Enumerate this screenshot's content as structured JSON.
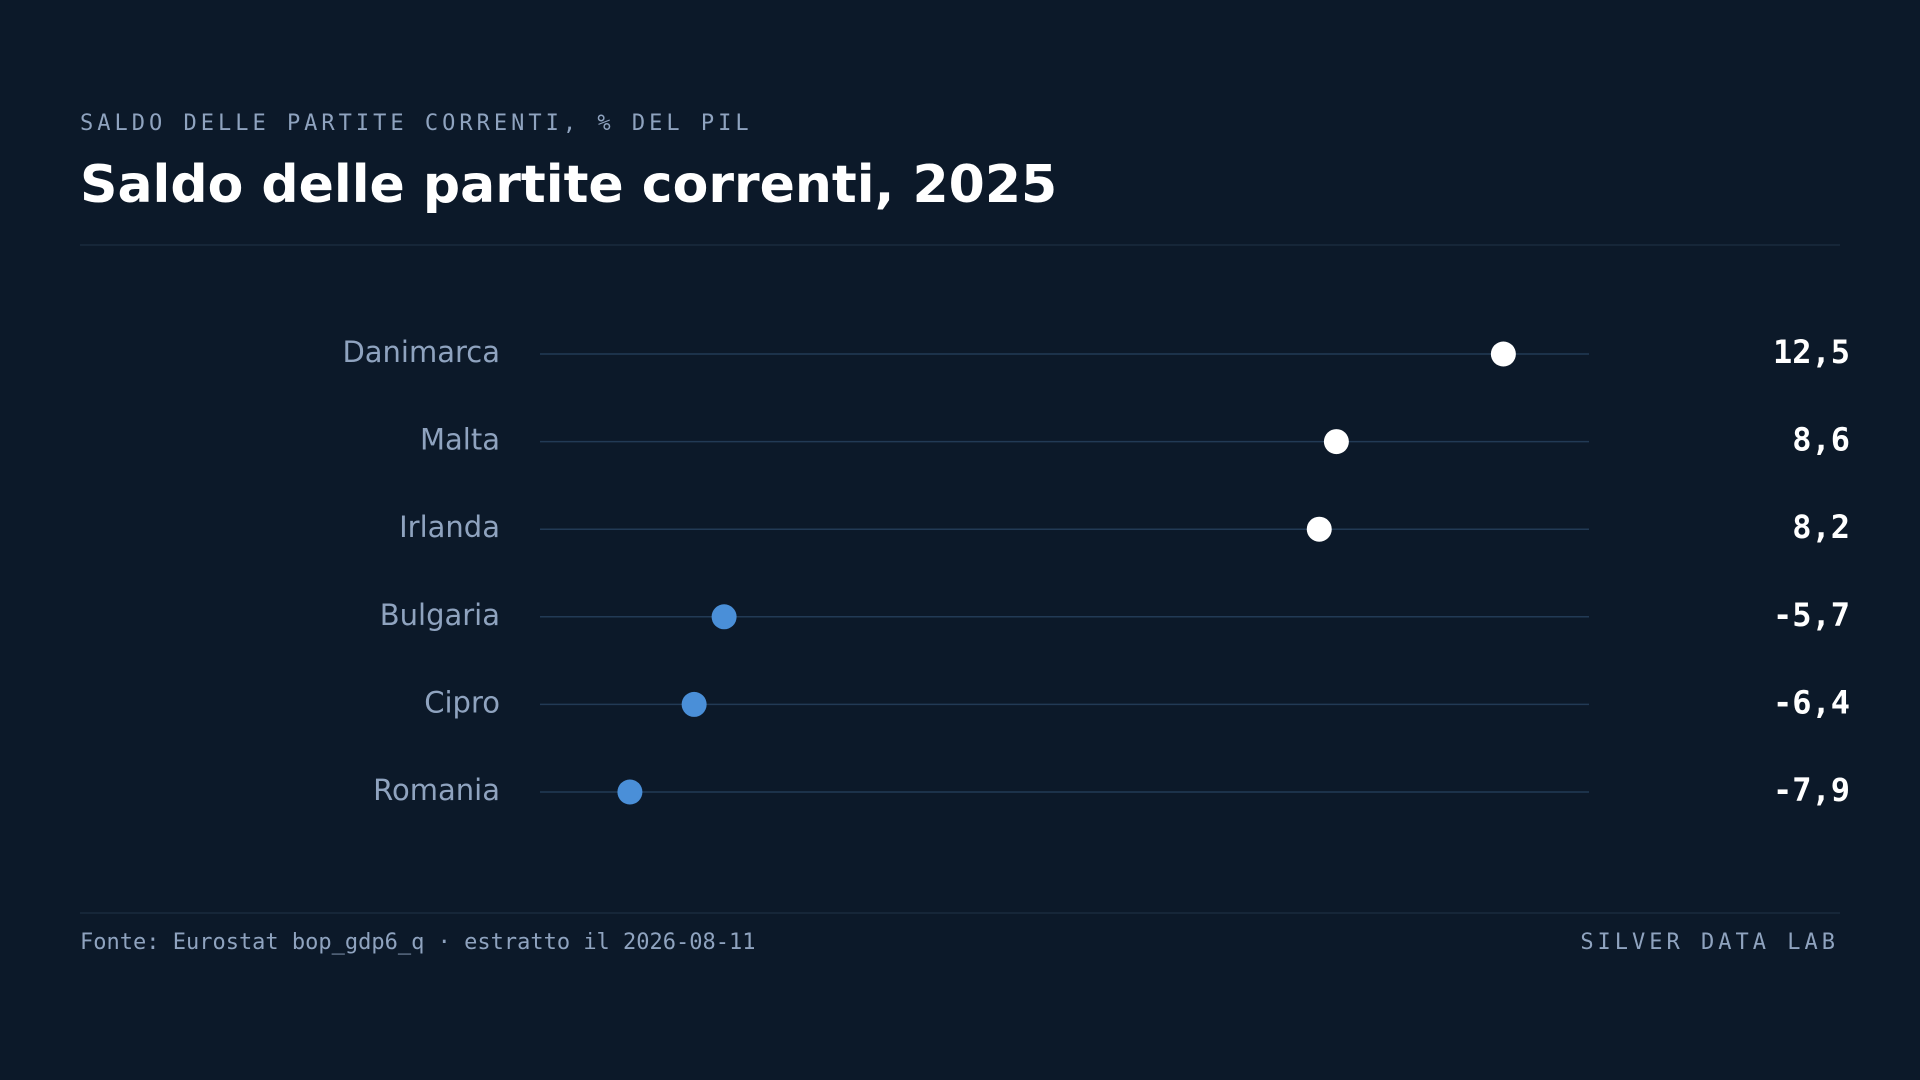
{
  "chart_data": {
    "type": "dot",
    "subtitle": "SALDO DELLE PARTITE CORRENTI, % DEL PIL",
    "title": "Saldo delle partite correnti, 2025",
    "categories": [
      "Danimarca",
      "Malta",
      "Irlanda",
      "Bulgaria",
      "Cipro",
      "Romania"
    ],
    "values": [
      12.5,
      8.6,
      8.2,
      -5.7,
      -6.4,
      -7.9
    ],
    "value_labels": [
      "12,5",
      "8,6",
      "8,2",
      "-5,7",
      "-6,4",
      "-7,9"
    ],
    "colors": [
      "#ffffff",
      "#ffffff",
      "#ffffff",
      "#4a8fd8",
      "#4a8fd8",
      "#4a8fd8"
    ],
    "xlim": [
      -10,
      14.5
    ],
    "source": "Fonte: Eurostat bop_gdp6_q · estratto il 2026-08-11",
    "brand": "SILVER DATA LAB"
  }
}
